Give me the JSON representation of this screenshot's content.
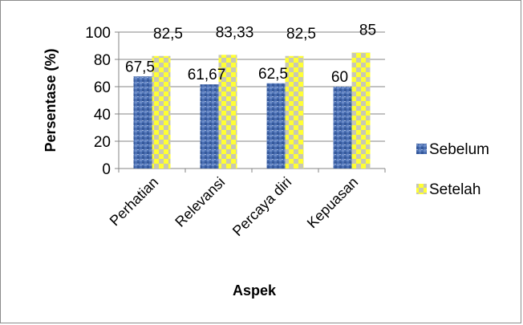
{
  "chart_data": {
    "type": "bar",
    "title": "",
    "xlabel": "Aspek",
    "ylabel": "Persentase (%)",
    "categories": [
      "Perhatian",
      "Relevansi",
      "Percaya diri",
      "Kepuasan"
    ],
    "series": [
      {
        "name": "Sebelum",
        "values": [
          67.5,
          61.67,
          62.5,
          60
        ],
        "labels": [
          "67,5",
          "61,67",
          "62,5",
          "60"
        ],
        "color": "#4f72b8",
        "pattern": "textured-blue"
      },
      {
        "name": "Setelah",
        "values": [
          82.5,
          83.33,
          82.5,
          85
        ],
        "labels": [
          "82,5",
          "83,33",
          "82,5",
          "85"
        ],
        "color": "#ffff33",
        "pattern": "yellow-gray-checker"
      }
    ],
    "ylim": [
      0,
      100
    ],
    "yticks": [
      0,
      20,
      40,
      60,
      80,
      100
    ],
    "grid": true,
    "legend": "right"
  }
}
